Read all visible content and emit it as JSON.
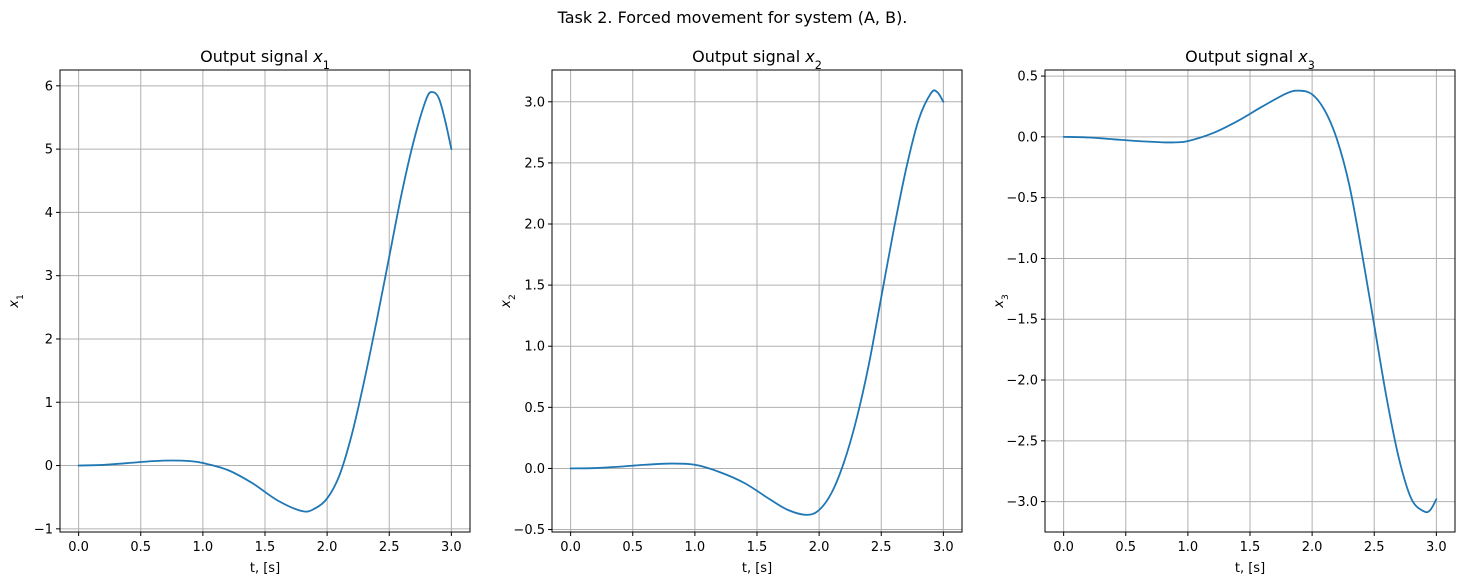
{
  "suptitle": "Task 2. Forced movement for system (A, B).",
  "colors": {
    "series": "#1f77b4",
    "grid": "#b0b0b0"
  },
  "chart_data": [
    {
      "type": "line",
      "title": "Output signal x1",
      "title_text": "Output signal ",
      "title_math": "x",
      "title_sub": "1",
      "xlabel": "t, [s]",
      "ylabel": "x1",
      "ylabel_math": "x",
      "ylabel_sub": "1",
      "grid": true,
      "xlim": [
        -0.15,
        3.15
      ],
      "ylim": [
        -1.05,
        6.25
      ],
      "xticks": [
        0.0,
        0.5,
        1.0,
        1.5,
        2.0,
        2.5,
        3.0
      ],
      "xtick_labels": [
        "0.0",
        "0.5",
        "1.0",
        "1.5",
        "2.0",
        "2.5",
        "3.0"
      ],
      "yticks": [
        -1,
        0,
        1,
        2,
        3,
        4,
        5,
        6
      ],
      "ytick_labels": [
        "−1",
        "0",
        "1",
        "2",
        "3",
        "4",
        "5",
        "6"
      ],
      "series": [
        {
          "x": [
            0.0,
            0.2,
            0.4,
            0.6,
            0.75,
            0.9,
            1.0,
            1.2,
            1.4,
            1.6,
            1.8,
            1.9,
            2.0,
            2.1,
            2.2,
            2.3,
            2.4,
            2.5,
            2.6,
            2.7,
            2.8,
            2.85,
            2.9,
            2.95,
            3.0
          ],
          "y": [
            0.0,
            0.01,
            0.04,
            0.07,
            0.08,
            0.07,
            0.04,
            -0.07,
            -0.28,
            -0.55,
            -0.72,
            -0.68,
            -0.52,
            -0.15,
            0.5,
            1.35,
            2.3,
            3.3,
            4.3,
            5.15,
            5.8,
            5.9,
            5.8,
            5.45,
            5.0
          ]
        }
      ]
    },
    {
      "type": "line",
      "title": "Output signal x2",
      "title_text": "Output signal ",
      "title_math": "x",
      "title_sub": "2",
      "xlabel": "t, [s]",
      "ylabel": "x2",
      "ylabel_math": "x",
      "ylabel_sub": "2",
      "grid": true,
      "xlim": [
        -0.15,
        3.15
      ],
      "ylim": [
        -0.52,
        3.26
      ],
      "xticks": [
        0.0,
        0.5,
        1.0,
        1.5,
        2.0,
        2.5,
        3.0
      ],
      "xtick_labels": [
        "0.0",
        "0.5",
        "1.0",
        "1.5",
        "2.0",
        "2.5",
        "3.0"
      ],
      "yticks": [
        -0.5,
        0.0,
        0.5,
        1.0,
        1.5,
        2.0,
        2.5,
        3.0
      ],
      "ytick_labels": [
        "−0.5",
        "0.0",
        "0.5",
        "1.0",
        "1.5",
        "2.0",
        "2.5",
        "3.0"
      ],
      "series": [
        {
          "x": [
            0.0,
            0.2,
            0.4,
            0.6,
            0.8,
            1.0,
            1.2,
            1.4,
            1.6,
            1.75,
            1.9,
            2.0,
            2.1,
            2.2,
            2.3,
            2.4,
            2.5,
            2.6,
            2.7,
            2.8,
            2.9,
            2.95,
            3.0
          ],
          "y": [
            0.0,
            0.003,
            0.015,
            0.03,
            0.04,
            0.03,
            -0.03,
            -0.12,
            -0.25,
            -0.34,
            -0.38,
            -0.34,
            -0.2,
            0.05,
            0.4,
            0.85,
            1.4,
            1.95,
            2.45,
            2.85,
            3.07,
            3.08,
            3.0
          ]
        }
      ]
    },
    {
      "type": "line",
      "title": "Output signal x3",
      "title_text": "Output signal ",
      "title_math": "x",
      "title_sub": "3",
      "xlabel": "t, [s]",
      "ylabel": "x3",
      "ylabel_math": "x",
      "ylabel_sub": "3",
      "grid": true,
      "xlim": [
        -0.15,
        3.15
      ],
      "ylim": [
        -3.25,
        0.55
      ],
      "xticks": [
        0.0,
        0.5,
        1.0,
        1.5,
        2.0,
        2.5,
        3.0
      ],
      "xtick_labels": [
        "0.0",
        "0.5",
        "1.0",
        "1.5",
        "2.0",
        "2.5",
        "3.0"
      ],
      "yticks": [
        -3.0,
        -2.5,
        -2.0,
        -1.5,
        -1.0,
        -0.5,
        0.0,
        0.5
      ],
      "ytick_labels": [
        "−3.0",
        "−2.5",
        "−2.0",
        "−1.5",
        "−1.0",
        "−0.5",
        "0.0",
        "0.5"
      ],
      "series": [
        {
          "x": [
            0.0,
            0.2,
            0.4,
            0.6,
            0.8,
            0.9,
            1.0,
            1.2,
            1.4,
            1.6,
            1.8,
            1.9,
            2.0,
            2.1,
            2.2,
            2.3,
            2.4,
            2.5,
            2.6,
            2.7,
            2.8,
            2.9,
            2.95,
            3.0
          ],
          "y": [
            0.0,
            -0.005,
            -0.02,
            -0.035,
            -0.045,
            -0.045,
            -0.035,
            0.03,
            0.13,
            0.25,
            0.36,
            0.38,
            0.35,
            0.22,
            -0.02,
            -0.4,
            -0.95,
            -1.55,
            -2.15,
            -2.65,
            -2.98,
            -3.08,
            -3.07,
            -2.98
          ]
        }
      ]
    }
  ]
}
